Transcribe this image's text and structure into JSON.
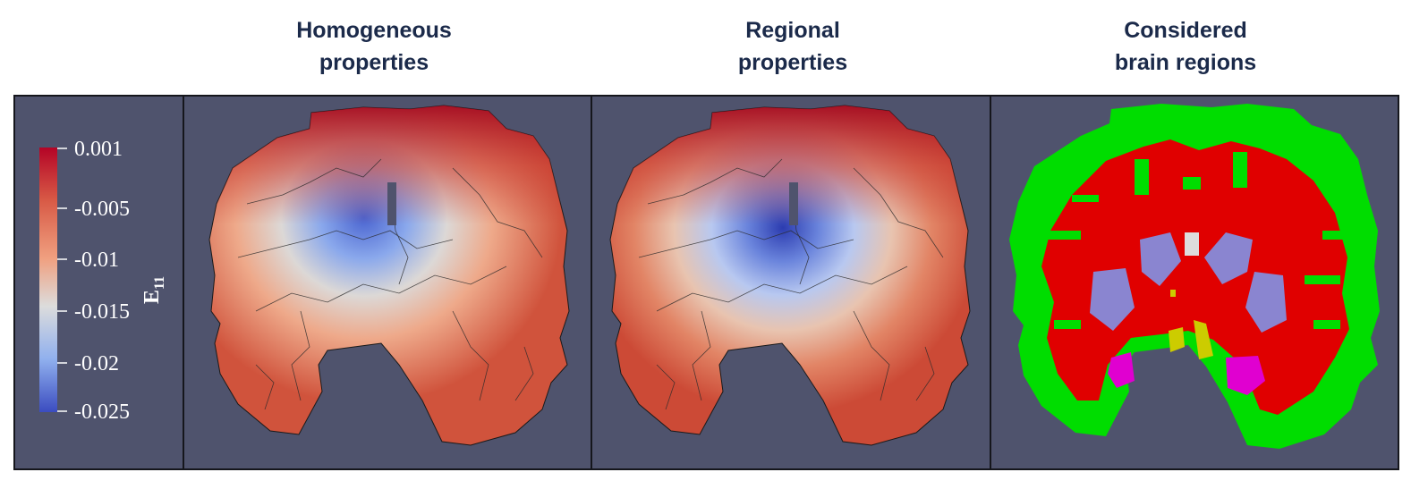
{
  "titles": {
    "homogeneous": {
      "line1": "Homogeneous",
      "line2": "properties"
    },
    "regional": {
      "line1": "Regional",
      "line2": "properties"
    },
    "regions": {
      "line1": "Considered",
      "line2": "brain regions"
    }
  },
  "colorbar": {
    "label_main": "E",
    "label_sub": "11",
    "ticks": [
      "0.001",
      "-0.005",
      "-0.01",
      "-0.015",
      "-0.02",
      "-0.025"
    ],
    "gradient": [
      "#b40426",
      "#d85a46",
      "#f0a080",
      "#dcdcdc",
      "#90b0ee",
      "#3b4cc0"
    ]
  },
  "colors": {
    "background_panel": "#4f536d",
    "title_text": "#1b2a4a",
    "region_cortex": "#00dd00",
    "region_white_matter": "#e00000",
    "region_ventricles": "#8a85d0",
    "region_basal_ganglia": "#cccc00",
    "region_hippocampus": "#e000d0",
    "region_corpus_callosum": "#dddddd"
  }
}
